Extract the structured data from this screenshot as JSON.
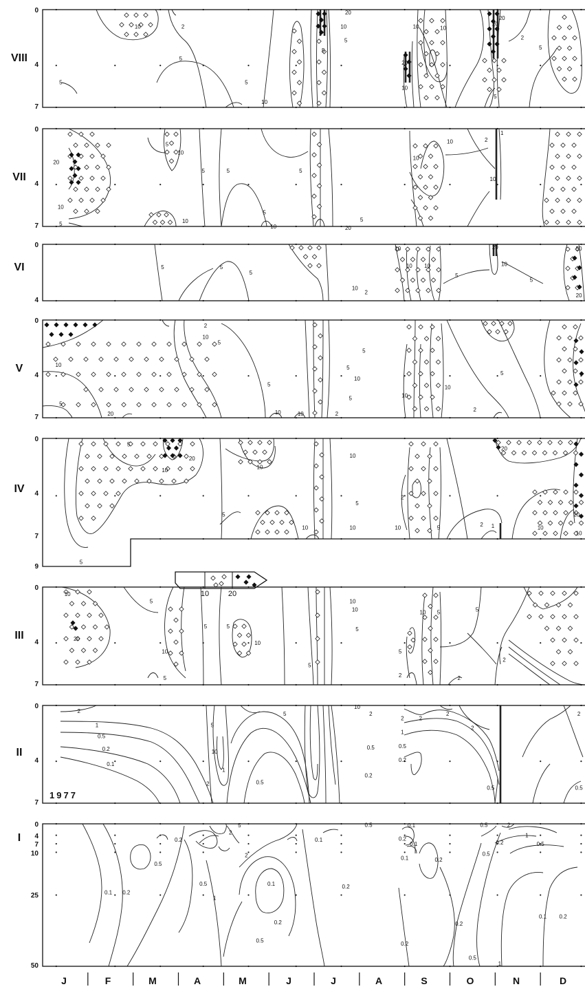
{
  "chart_data": {
    "type": "contour",
    "year_label": "1977",
    "x_axis": {
      "month_labels": [
        "J",
        "F",
        "M",
        "A",
        "M",
        "J",
        "J",
        "A",
        "S",
        "O",
        "N",
        "D"
      ]
    },
    "legend": {
      "labels": [
        "10",
        "20"
      ]
    },
    "panels": [
      {
        "id": "VIII",
        "label": "VIII",
        "depth_ticks": [
          "0",
          "4",
          "7"
        ],
        "isolines": [
          "1",
          "2",
          "5",
          "10",
          "20"
        ],
        "shaded_levels": [
          "10",
          "20"
        ],
        "contour_labels": [
          {
            "t": "10",
            "m": 2.1,
            "d": 1.2
          },
          {
            "t": "2",
            "m": 3.1,
            "d": 1.2
          },
          {
            "t": "5",
            "m": 3.05,
            "d": 3.5
          },
          {
            "t": "5",
            "m": 0.4,
            "d": 5.2
          },
          {
            "t": "5",
            "m": 4.5,
            "d": 5.2
          },
          {
            "t": "10",
            "m": 4.9,
            "d": 6.6
          },
          {
            "t": "5",
            "m": 6.2,
            "d": 2.9
          },
          {
            "t": "20",
            "m": 6.75,
            "d": 0.2
          },
          {
            "t": "10",
            "m": 6.65,
            "d": 1.2
          },
          {
            "t": "5",
            "m": 6.7,
            "d": 2.2
          },
          {
            "t": "10",
            "m": 8.25,
            "d": 1.2
          },
          {
            "t": "10",
            "m": 8.85,
            "d": 1.3
          },
          {
            "t": "20",
            "m": 8.0,
            "d": 3.8
          },
          {
            "t": "10",
            "m": 8.0,
            "d": 5.6
          },
          {
            "t": "20",
            "m": 10.0,
            "d": 1.0
          },
          {
            "t": "2",
            "m": 10.6,
            "d": 2.0
          },
          {
            "t": "5",
            "m": 11.0,
            "d": 2.7
          },
          {
            "t": "5",
            "m": 10.0,
            "d": 6.2
          },
          {
            "t": "20",
            "m": 10.15,
            "d": 0.6
          }
        ]
      },
      {
        "id": "VII",
        "label": "VII",
        "depth_ticks": [
          "0",
          "4",
          "7"
        ],
        "isolines": [
          "1",
          "2",
          "5",
          "10",
          "20"
        ],
        "shaded_levels": [
          "10",
          "20"
        ],
        "contour_labels": [
          {
            "t": "20",
            "m": 0.3,
            "d": 2.4
          },
          {
            "t": "10",
            "m": 0.4,
            "d": 5.6
          },
          {
            "t": "5",
            "m": 0.4,
            "d": 6.8
          },
          {
            "t": "5",
            "m": 2.75,
            "d": 1.1
          },
          {
            "t": "10",
            "m": 3.05,
            "d": 1.7
          },
          {
            "t": "5",
            "m": 3.55,
            "d": 3.0
          },
          {
            "t": "5",
            "m": 4.1,
            "d": 3.0
          },
          {
            "t": "5",
            "m": 5.7,
            "d": 3.0
          },
          {
            "t": "5",
            "m": 4.9,
            "d": 6.0
          },
          {
            "t": "10",
            "m": 3.15,
            "d": 6.6
          },
          {
            "t": "10",
            "m": 5.1,
            "d": 7.0
          },
          {
            "t": "20",
            "m": 6.75,
            "d": 7.1
          },
          {
            "t": "5",
            "m": 7.05,
            "d": 6.5
          },
          {
            "t": "10",
            "m": 8.25,
            "d": 2.1
          },
          {
            "t": "2",
            "m": 9.8,
            "d": 0.8
          },
          {
            "t": "10",
            "m": 9.95,
            "d": 3.6
          },
          {
            "t": "1",
            "m": 10.15,
            "d": 0.3
          },
          {
            "t": "10",
            "m": 9.0,
            "d": 0.9
          }
        ]
      },
      {
        "id": "VI",
        "label": "VI",
        "depth_ticks": [
          "0",
          "4"
        ],
        "isolines": [
          "2",
          "5",
          "10",
          "20",
          "50"
        ],
        "shaded_levels": [
          "10",
          "20"
        ],
        "contour_labels": [
          {
            "t": "5",
            "m": 2.65,
            "d": 1.6
          },
          {
            "t": "5",
            "m": 3.95,
            "d": 1.6
          },
          {
            "t": "5",
            "m": 4.6,
            "d": 2.0
          },
          {
            "t": "10",
            "m": 6.9,
            "d": 3.1
          },
          {
            "t": "2",
            "m": 7.15,
            "d": 3.4
          },
          {
            "t": "10",
            "m": 7.85,
            "d": 0.3
          },
          {
            "t": "10",
            "m": 8.1,
            "d": 1.5
          },
          {
            "t": "10",
            "m": 8.5,
            "d": 1.5
          },
          {
            "t": "5",
            "m": 9.15,
            "d": 2.2
          },
          {
            "t": "20",
            "m": 10.0,
            "d": 0.2
          },
          {
            "t": "10",
            "m": 10.2,
            "d": 1.4
          },
          {
            "t": "5",
            "m": 10.8,
            "d": 2.5
          },
          {
            "t": "50",
            "m": 11.85,
            "d": 0.3
          },
          {
            "t": "20",
            "m": 11.85,
            "d": 3.6
          }
        ]
      },
      {
        "id": "V",
        "label": "V",
        "depth_ticks": [
          "0",
          "4",
          "7"
        ],
        "isolines": [
          "2",
          "5",
          "10",
          "20"
        ],
        "shaded_levels": [
          "10",
          "20"
        ],
        "contour_labels": [
          {
            "t": "10",
            "m": 0.35,
            "d": 3.2
          },
          {
            "t": "5",
            "m": 0.4,
            "d": 6.0
          },
          {
            "t": "20",
            "m": 1.5,
            "d": 6.7
          },
          {
            "t": "2",
            "m": 3.6,
            "d": 0.4
          },
          {
            "t": "10",
            "m": 3.6,
            "d": 1.2
          },
          {
            "t": "5",
            "m": 3.9,
            "d": 1.6
          },
          {
            "t": "5",
            "m": 5.0,
            "d": 4.6
          },
          {
            "t": "10",
            "m": 5.2,
            "d": 6.6
          },
          {
            "t": "10",
            "m": 5.7,
            "d": 6.7
          },
          {
            "t": "2",
            "m": 6.5,
            "d": 6.7
          },
          {
            "t": "5",
            "m": 6.75,
            "d": 3.4
          },
          {
            "t": "5",
            "m": 6.8,
            "d": 5.6
          },
          {
            "t": "10",
            "m": 6.95,
            "d": 4.2
          },
          {
            "t": "5",
            "m": 7.1,
            "d": 2.2
          },
          {
            "t": "10",
            "m": 8.0,
            "d": 5.4
          },
          {
            "t": "10",
            "m": 8.95,
            "d": 4.8
          },
          {
            "t": "2",
            "m": 9.55,
            "d": 6.4
          },
          {
            "t": "5",
            "m": 10.15,
            "d": 3.8
          }
        ]
      },
      {
        "id": "IV",
        "label": "IV",
        "depth_ticks": [
          "0",
          "4",
          "7",
          "9"
        ],
        "isolines": [
          "1",
          "2",
          "5",
          "10",
          "20"
        ],
        "shaded_levels": [
          "10",
          "20"
        ],
        "contour_labels": [
          {
            "t": "5",
            "m": 1.9,
            "d": 0.4
          },
          {
            "t": "20",
            "m": 3.3,
            "d": 1.4
          },
          {
            "t": "10",
            "m": 2.7,
            "d": 2.2
          },
          {
            "t": "10",
            "m": 4.8,
            "d": 2.0
          },
          {
            "t": "5",
            "m": 4.0,
            "d": 5.3
          },
          {
            "t": "10",
            "m": 5.8,
            "d": 6.2
          },
          {
            "t": "10",
            "m": 6.85,
            "d": 1.2
          },
          {
            "t": "10",
            "m": 6.85,
            "d": 6.2
          },
          {
            "t": "5",
            "m": 6.95,
            "d": 4.5
          },
          {
            "t": "5",
            "m": 0.85,
            "d": 8.6
          },
          {
            "t": "2",
            "m": 7.95,
            "d": 4.1
          },
          {
            "t": "10",
            "m": 7.85,
            "d": 6.2
          },
          {
            "t": "5",
            "m": 8.75,
            "d": 6.2
          },
          {
            "t": "2",
            "m": 9.7,
            "d": 6.0
          },
          {
            "t": "1",
            "m": 9.95,
            "d": 6.1
          },
          {
            "t": "20",
            "m": 10.2,
            "d": 0.7
          },
          {
            "t": "10",
            "m": 11.0,
            "d": 6.2
          },
          {
            "t": "10",
            "m": 11.85,
            "d": 6.6
          },
          {
            "t": "20",
            "m": 11.8,
            "d": 5.3
          }
        ]
      },
      {
        "id": "III",
        "label": "III",
        "depth_ticks": [
          "0",
          "4",
          "7"
        ],
        "isolines": [
          "2",
          "5",
          "10",
          "20"
        ],
        "shaded_levels": [
          "10",
          "20"
        ],
        "contour_labels": [
          {
            "t": "10",
            "m": 0.55,
            "d": 0.5
          },
          {
            "t": "20",
            "m": 0.75,
            "d": 3.7
          },
          {
            "t": "5",
            "m": 2.4,
            "d": 1.0
          },
          {
            "t": "10",
            "m": 2.7,
            "d": 4.6
          },
          {
            "t": "5",
            "m": 2.7,
            "d": 6.5
          },
          {
            "t": "5",
            "m": 3.6,
            "d": 2.8
          },
          {
            "t": "5",
            "m": 4.1,
            "d": 2.8
          },
          {
            "t": "10",
            "m": 4.75,
            "d": 4.0
          },
          {
            "t": "5",
            "m": 5.9,
            "d": 5.6
          },
          {
            "t": "10",
            "m": 6.85,
            "d": 1.0
          },
          {
            "t": "10",
            "m": 6.9,
            "d": 1.6
          },
          {
            "t": "5",
            "m": 6.95,
            "d": 3.0
          },
          {
            "t": "10",
            "m": 8.4,
            "d": 1.8
          },
          {
            "t": "5",
            "m": 8.75,
            "d": 1.8
          },
          {
            "t": "5",
            "m": 7.9,
            "d": 4.6
          },
          {
            "t": "2",
            "m": 7.9,
            "d": 6.3
          },
          {
            "t": "2",
            "m": 9.2,
            "d": 6.5
          },
          {
            "t": "5",
            "m": 9.6,
            "d": 1.6
          },
          {
            "t": "2",
            "m": 10.2,
            "d": 5.2
          }
        ]
      },
      {
        "id": "II",
        "label": "II",
        "depth_ticks": [
          "0",
          "4",
          "7"
        ],
        "isolines": [
          "0.1",
          "0.2",
          "0.5",
          "1",
          "2",
          "5",
          "10"
        ],
        "shaded_levels": [],
        "contour_labels": [
          {
            "t": "2",
            "m": 0.8,
            "d": 0.4
          },
          {
            "t": "1",
            "m": 1.2,
            "d": 1.4
          },
          {
            "t": "0.5",
            "m": 1.3,
            "d": 2.2
          },
          {
            "t": "0.2",
            "m": 1.4,
            "d": 3.1
          },
          {
            "t": "0.1",
            "m": 1.5,
            "d": 4.2
          },
          {
            "t": "2",
            "m": 3.65,
            "d": 5.6
          },
          {
            "t": "5",
            "m": 3.75,
            "d": 1.4
          },
          {
            "t": "10",
            "m": 3.8,
            "d": 3.3
          },
          {
            "t": "1",
            "m": 4.0,
            "d": 4.6
          },
          {
            "t": "0.5",
            "m": 4.8,
            "d": 5.5
          },
          {
            "t": "5",
            "m": 5.35,
            "d": 0.6
          },
          {
            "t": "10",
            "m": 6.95,
            "d": 0.1
          },
          {
            "t": "2",
            "m": 7.25,
            "d": 0.6
          },
          {
            "t": "0.5",
            "m": 7.25,
            "d": 3.0
          },
          {
            "t": "0.2",
            "m": 7.2,
            "d": 5.0
          },
          {
            "t": "2",
            "m": 7.95,
            "d": 0.9
          },
          {
            "t": "2",
            "m": 8.35,
            "d": 0.9
          },
          {
            "t": "1",
            "m": 7.95,
            "d": 1.9
          },
          {
            "t": "0.5",
            "m": 7.95,
            "d": 2.9
          },
          {
            "t": "0.2",
            "m": 7.95,
            "d": 3.9
          },
          {
            "t": "2",
            "m": 8.95,
            "d": 0.6
          },
          {
            "t": "2",
            "m": 9.5,
            "d": 1.6
          },
          {
            "t": "0.5",
            "m": 9.9,
            "d": 5.9
          },
          {
            "t": "2",
            "m": 11.85,
            "d": 0.6
          },
          {
            "t": "0.5",
            "m": 11.85,
            "d": 5.9
          }
        ]
      },
      {
        "id": "I",
        "label": "I",
        "depth_ticks": [
          "0",
          "4",
          "7",
          "10",
          "25",
          "50"
        ],
        "isolines": [
          "0.1",
          "0.2",
          "0.5",
          "1",
          "2",
          "5"
        ],
        "shaded_levels": [],
        "contour_labels": [
          {
            "t": "0.1",
            "m": 1.45,
            "d": 24.0
          },
          {
            "t": "0.2",
            "m": 1.85,
            "d": 24.0
          },
          {
            "t": "0.5",
            "m": 2.55,
            "d": 14.0
          },
          {
            "t": "0.2",
            "m": 3.0,
            "d": 5.5
          },
          {
            "t": "0.5",
            "m": 3.55,
            "d": 21.0
          },
          {
            "t": "2",
            "m": 4.15,
            "d": 3.0
          },
          {
            "t": "5",
            "m": 4.35,
            "d": 0.5
          },
          {
            "t": "1",
            "m": 3.8,
            "d": 26.0
          },
          {
            "t": "2",
            "m": 4.5,
            "d": 11.0
          },
          {
            "t": "0.1",
            "m": 5.05,
            "d": 21.0
          },
          {
            "t": "0.2",
            "m": 5.2,
            "d": 34.5
          },
          {
            "t": "0.5",
            "m": 4.8,
            "d": 41.0
          },
          {
            "t": "0.1",
            "m": 6.1,
            "d": 5.5
          },
          {
            "t": "0.2",
            "m": 6.7,
            "d": 22.0
          },
          {
            "t": "0.5",
            "m": 7.2,
            "d": 0.4
          },
          {
            "t": "0.1",
            "m": 8.15,
            "d": 0.5
          },
          {
            "t": "0.2",
            "m": 7.95,
            "d": 5.2
          },
          {
            "t": "0.1",
            "m": 8.2,
            "d": 7.0
          },
          {
            "t": "0.1",
            "m": 8.0,
            "d": 12.0
          },
          {
            "t": "0.2",
            "m": 8.75,
            "d": 12.5
          },
          {
            "t": "0.2",
            "m": 8.0,
            "d": 42.0
          },
          {
            "t": "0.2",
            "m": 9.2,
            "d": 35.0
          },
          {
            "t": "0.5",
            "m": 9.5,
            "d": 47.0
          },
          {
            "t": "1",
            "m": 10.1,
            "d": 49.0
          },
          {
            "t": "0.5",
            "m": 9.75,
            "d": 0.4
          },
          {
            "t": "2",
            "m": 10.3,
            "d": 0.4
          },
          {
            "t": "0.2",
            "m": 10.1,
            "d": 6.5
          },
          {
            "t": "0.5",
            "m": 9.8,
            "d": 10.5
          },
          {
            "t": "1",
            "m": 10.7,
            "d": 4.0
          },
          {
            "t": "0.5",
            "m": 11.0,
            "d": 7.0
          },
          {
            "t": "0.1",
            "m": 11.05,
            "d": 32.5
          },
          {
            "t": "0.2",
            "m": 11.5,
            "d": 32.5
          }
        ]
      }
    ]
  }
}
